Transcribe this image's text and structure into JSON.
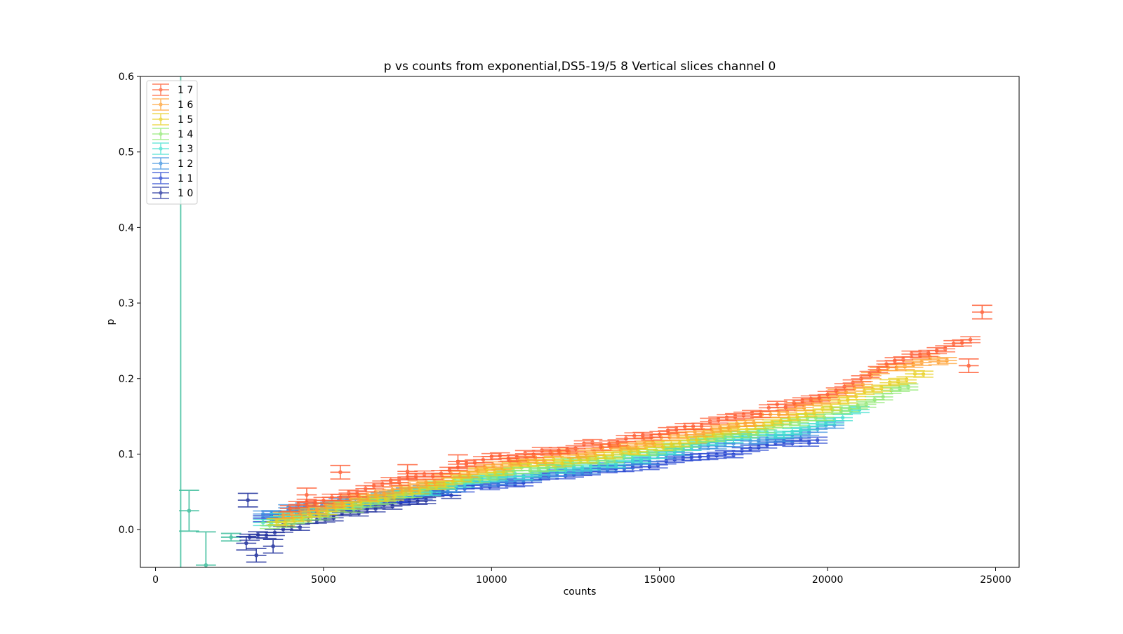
{
  "chart_data": {
    "type": "scatter",
    "title": "p vs counts from exponential,DS5-19/5 8 Vertical slices channel 0",
    "xlabel": "counts",
    "ylabel": "p",
    "xlim": [
      -450,
      25700
    ],
    "ylim": [
      -0.05,
      0.6
    ],
    "x_ticks": [
      0,
      5000,
      10000,
      15000,
      20000,
      25000
    ],
    "x_tick_labels": [
      "0",
      "5000",
      "10000",
      "15000",
      "20000",
      "25000"
    ],
    "y_ticks": [
      0.0,
      0.1,
      0.2,
      0.3,
      0.4,
      0.5,
      0.6
    ],
    "y_tick_labels": [
      "0.0",
      "0.1",
      "0.2",
      "0.3",
      "0.4",
      "0.5",
      "0.6"
    ],
    "grid": false,
    "legend_position": "top-left",
    "x_error": 300,
    "y_error": 0.004,
    "series": [
      {
        "name": "1 7",
        "color": "#ff5a30",
        "x_start": 4000,
        "x_end": 24300,
        "step": 250,
        "points": [
          [
            4000,
            0.03
          ],
          [
            10000,
            0.093
          ],
          [
            14000,
            0.118
          ],
          [
            17500,
            0.15
          ],
          [
            20000,
            0.18
          ],
          [
            22000,
            0.225
          ],
          [
            24300,
            0.252
          ]
        ],
        "extra": [
          [
            4500,
            0.046
          ],
          [
            5500,
            0.076
          ],
          [
            7500,
            0.077
          ],
          [
            9000,
            0.09
          ],
          [
            24600,
            0.288
          ],
          [
            24200,
            0.217
          ]
        ]
      },
      {
        "name": "1 6",
        "color": "#ffa030",
        "x_start": 3800,
        "x_end": 23600,
        "step": 250,
        "points": [
          [
            3800,
            0.018
          ],
          [
            10000,
            0.085
          ],
          [
            14000,
            0.11
          ],
          [
            17500,
            0.142
          ],
          [
            20000,
            0.172
          ],
          [
            22000,
            0.218
          ],
          [
            23600,
            0.228
          ]
        ],
        "extra": []
      },
      {
        "name": "1 5",
        "color": "#e8d020",
        "x_start": 3600,
        "x_end": 23000,
        "step": 250,
        "points": [
          [
            3600,
            0.01
          ],
          [
            10000,
            0.078
          ],
          [
            14000,
            0.103
          ],
          [
            17500,
            0.135
          ],
          [
            20000,
            0.162
          ],
          [
            22000,
            0.195
          ],
          [
            23000,
            0.21
          ]
        ],
        "extra": []
      },
      {
        "name": "1 4",
        "color": "#8ee870",
        "x_start": 3400,
        "x_end": 22400,
        "step": 250,
        "points": [
          [
            3400,
            0.005
          ],
          [
            10000,
            0.073
          ],
          [
            14000,
            0.098
          ],
          [
            17500,
            0.128
          ],
          [
            19000,
            0.14
          ],
          [
            20500,
            0.16
          ],
          [
            22400,
            0.188
          ]
        ],
        "extra": []
      },
      {
        "name": "1 3",
        "color": "#40e0d0",
        "x_start": 3200,
        "x_end": 21000,
        "step": 250,
        "points": [
          [
            3200,
            0.01
          ],
          [
            10000,
            0.068
          ],
          [
            14000,
            0.092
          ],
          [
            17500,
            0.125
          ],
          [
            19000,
            0.13
          ],
          [
            21000,
            0.16
          ]
        ],
        "extra": []
      },
      {
        "name": "1 2",
        "color": "#3a90e0",
        "x_start": 3200,
        "x_end": 20200,
        "step": 250,
        "points": [
          [
            3200,
            0.02
          ],
          [
            10000,
            0.065
          ],
          [
            14000,
            0.088
          ],
          [
            17500,
            0.12
          ],
          [
            19000,
            0.125
          ],
          [
            20200,
            0.138
          ]
        ],
        "extra": []
      },
      {
        "name": "1 1",
        "color": "#2040d0",
        "x_start": 3200,
        "x_end": 19800,
        "step": 250,
        "points": [
          [
            3200,
            0.015
          ],
          [
            10000,
            0.06
          ],
          [
            14000,
            0.083
          ],
          [
            16500,
            0.095
          ],
          [
            18000,
            0.112
          ],
          [
            19800,
            0.12
          ]
        ],
        "extra": []
      },
      {
        "name": "1 0",
        "color": "#1a2a9a",
        "x_start": 2800,
        "x_end": 9000,
        "step": 250,
        "points": [
          [
            2800,
            -0.01
          ],
          [
            6000,
            0.025
          ],
          [
            9000,
            0.05
          ]
        ],
        "extra": [
          [
            2750,
            0.039
          ],
          [
            3000,
            -0.034
          ],
          [
            2700,
            -0.018
          ],
          [
            3500,
            -0.022
          ]
        ]
      }
    ],
    "outliers": [
      {
        "color": "#45c0a0",
        "x": 1000,
        "y": 0.025,
        "yerr": 0.027,
        "xerr": 300
      },
      {
        "color": "#45c0a0",
        "x": 1500,
        "y": -0.047,
        "yerr": 0.044,
        "xerr": 300
      },
      {
        "color": "#45c0a0",
        "x": 2250,
        "y": -0.01,
        "yerr": 0.005,
        "xerr": 300
      },
      {
        "color": "#45c0a0",
        "x": 750,
        "y": 0.6,
        "yerr": 0.65,
        "xerr": 0
      }
    ]
  }
}
